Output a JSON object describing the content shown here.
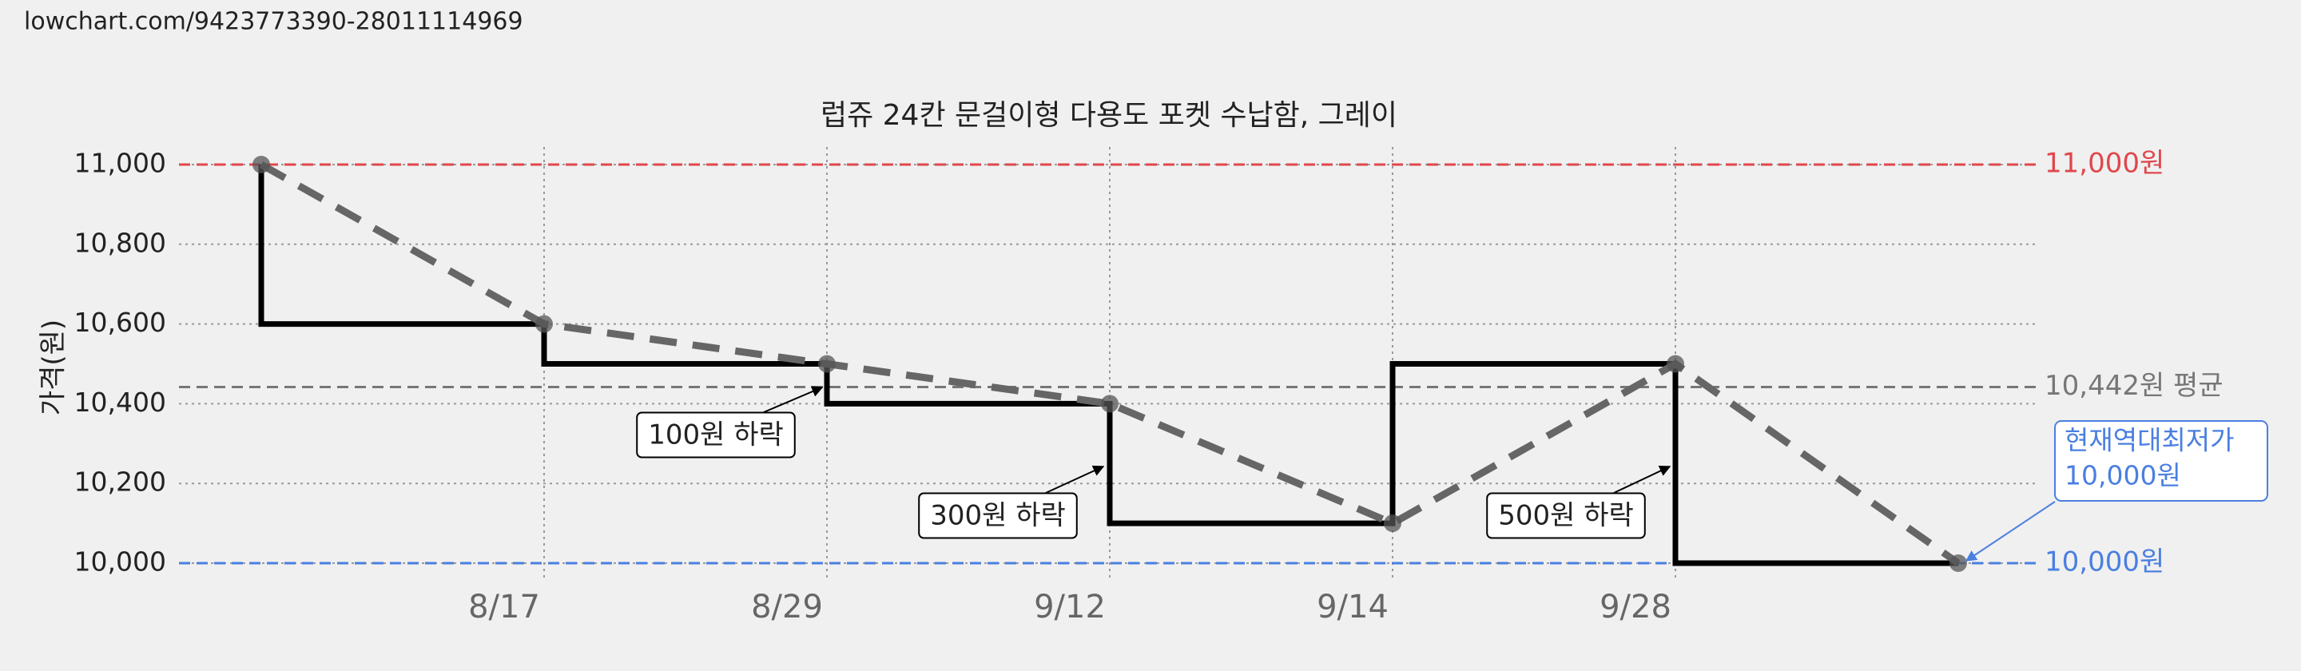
{
  "page_url": "lowchart.com/9423773390-28011114969",
  "chart_data": {
    "type": "step-line",
    "title": "럽쥬 24칸 문걸이형 다용도 포켓 수납함, 그레이",
    "y_label": "가격(원)",
    "categories": [
      null,
      "8/17",
      "8/29",
      "9/12",
      "9/14",
      "9/28",
      null
    ],
    "series": [
      {
        "color": "#000000",
        "trend_color": "#666666",
        "values": [
          11000,
          10600,
          10500,
          10400,
          10100,
          10500,
          10000
        ]
      }
    ],
    "ylim": [
      10000,
      11000
    ],
    "yticks": [
      {
        "value": 10000,
        "label": "10,000"
      },
      {
        "value": 10200,
        "label": "10,200"
      },
      {
        "value": 10400,
        "label": "10,400"
      },
      {
        "value": 10600,
        "label": "10,600"
      },
      {
        "value": 10800,
        "label": "10,800"
      },
      {
        "value": 11000,
        "label": "11,000"
      }
    ],
    "grid": true,
    "reference_lines": [
      {
        "value": 11000,
        "label": "11,000원",
        "color": "#e0474c"
      },
      {
        "value": 10442,
        "label": "10,442원 평균",
        "color": "#777777"
      },
      {
        "value": 10000,
        "label": "10,000원",
        "color": "#4a7fe0"
      }
    ],
    "annotations": [
      {
        "text": "100원 하락"
      },
      {
        "text": "300원 하락"
      },
      {
        "text": "500원 하락"
      },
      {
        "lines": [
          "현재역대최저가",
          "10,000원"
        ],
        "color": "#4a7fe0"
      }
    ]
  }
}
